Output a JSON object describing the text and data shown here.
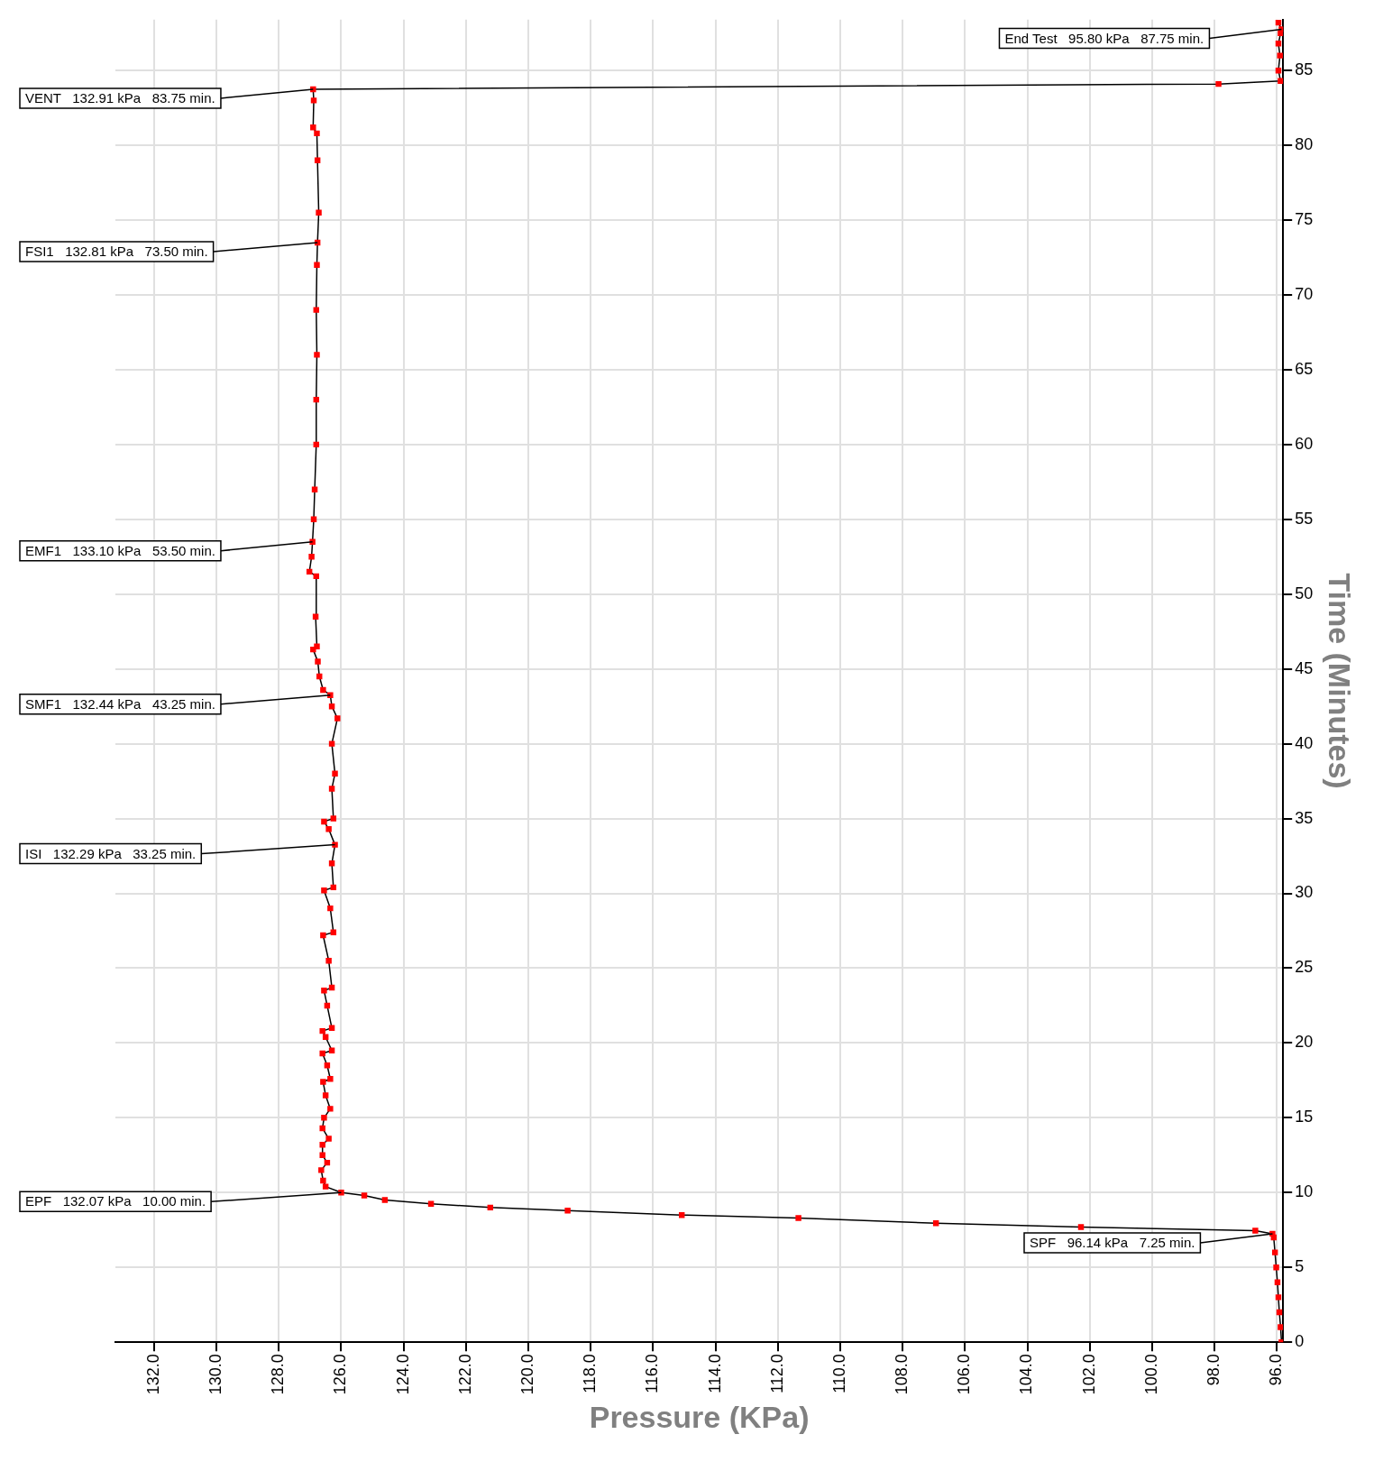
{
  "chart_data": {
    "type": "line",
    "xlabel": "Pressure (KPa)",
    "ylabel": "Time (Minutes)",
    "xlim": [
      133.24,
      95.8
    ],
    "xticks": [
      {
        "value": 132,
        "label": "132.0"
      },
      {
        "value": 130,
        "label": "130.0"
      },
      {
        "value": 128,
        "label": "128.0"
      },
      {
        "value": 126,
        "label": "126.0"
      },
      {
        "value": 124,
        "label": "124.0"
      },
      {
        "value": 122,
        "label": "122.0"
      },
      {
        "value": 120,
        "label": "120.0"
      },
      {
        "value": 118,
        "label": "118.0"
      },
      {
        "value": 116,
        "label": "116.0"
      },
      {
        "value": 114,
        "label": "114.0"
      },
      {
        "value": 112,
        "label": "112.0"
      },
      {
        "value": 110,
        "label": "110.0"
      },
      {
        "value": 108,
        "label": "108.0"
      },
      {
        "value": 106,
        "label": "106.0"
      },
      {
        "value": 104,
        "label": "104.0"
      },
      {
        "value": 102,
        "label": "102.0"
      },
      {
        "value": 100,
        "label": "100.0"
      },
      {
        "value": 98,
        "label": "98.0"
      },
      {
        "value": 96,
        "label": "96.0"
      }
    ],
    "ylim": [
      0,
      88.4
    ],
    "yticks": [
      0,
      5,
      10,
      15,
      20,
      25,
      30,
      35,
      40,
      45,
      50,
      55,
      60,
      65,
      70,
      75,
      80,
      85
    ],
    "grid": true,
    "legend": false,
    "marker": "square",
    "line_style": "solid",
    "series": [
      {
        "color": "#ff0000",
        "x": [
          95.85,
          95.88,
          95.92,
          95.95,
          95.98,
          96.02,
          96.06,
          96.1,
          96.14,
          96.69,
          102.28,
          106.93,
          111.34,
          115.08,
          118.74,
          121.22,
          123.12,
          124.6,
          125.26,
          126.0,
          126.5,
          126.58,
          126.64,
          126.45,
          126.6,
          126.6,
          126.4,
          126.6,
          126.55,
          126.35,
          126.5,
          126.58,
          126.35,
          126.45,
          126.6,
          126.3,
          126.5,
          126.6,
          126.3,
          126.45,
          126.55,
          126.3,
          126.4,
          126.58,
          126.25,
          126.35,
          126.55,
          126.25,
          126.3,
          126.2,
          126.4,
          126.55,
          126.25,
          126.3,
          126.2,
          126.3,
          126.12,
          126.3,
          126.35,
          126.58,
          126.7,
          126.75,
          126.9,
          126.78,
          126.82,
          126.8,
          127.02,
          126.95,
          126.92,
          126.88,
          126.85,
          126.8,
          126.8,
          126.78,
          126.8,
          126.78,
          126.76,
          126.72,
          126.76,
          126.78,
          126.9,
          126.88,
          126.9,
          97.87,
          95.88,
          95.95,
          95.9,
          95.95,
          95.88,
          95.85,
          95.95
        ],
        "values": [
          0,
          1,
          2,
          3,
          4,
          5,
          6,
          7,
          7.25,
          7.45,
          7.7,
          7.95,
          8.3,
          8.5,
          8.8,
          9.0,
          9.25,
          9.5,
          9.8,
          10.0,
          10.4,
          10.8,
          11.5,
          12.0,
          12.5,
          13.2,
          13.6,
          14.3,
          15.0,
          15.6,
          16.5,
          17.4,
          17.6,
          18.5,
          19.3,
          19.5,
          20.4,
          20.8,
          21.0,
          22.5,
          23.5,
          23.7,
          25.5,
          27.2,
          27.4,
          29.0,
          30.2,
          30.4,
          32.0,
          33.25,
          34.3,
          34.8,
          35.0,
          37.0,
          38.0,
          40.0,
          41.7,
          42.5,
          43.25,
          43.6,
          44.5,
          45.5,
          46.3,
          46.5,
          48.5,
          51.2,
          51.5,
          52.5,
          53.5,
          55.0,
          57.0,
          60,
          63,
          66,
          69,
          72,
          73.5,
          75.5,
          79,
          80.8,
          81.2,
          83.0,
          83.75,
          84.1,
          84.3,
          85,
          86,
          86.8,
          87.5,
          87.75,
          88.2
        ]
      }
    ],
    "annotations": [
      {
        "text": "End Test   95.80 kPa   87.75 min.",
        "x": 95.85,
        "y": 87.75
      },
      {
        "text": "VENT   132.91 kPa   83.75 min.",
        "x": 126.9,
        "y": 83.75
      },
      {
        "text": "FSI1   132.81 kPa   73.50 min.",
        "x": 126.76,
        "y": 73.5
      },
      {
        "text": "EMF1   133.10 kPa   53.50 min.",
        "x": 126.92,
        "y": 53.5
      },
      {
        "text": "SMF1   132.44 kPa   43.25 min.",
        "x": 126.35,
        "y": 43.25
      },
      {
        "text": "ISI   132.29 kPa   33.25 min.",
        "x": 126.2,
        "y": 33.25
      },
      {
        "text": "EPF   132.07 kPa   10.00 min.",
        "x": 126.0,
        "y": 10.0
      },
      {
        "text": "SPF   96.14 kPa   7.25 min.",
        "x": 96.14,
        "y": 7.25
      }
    ]
  }
}
